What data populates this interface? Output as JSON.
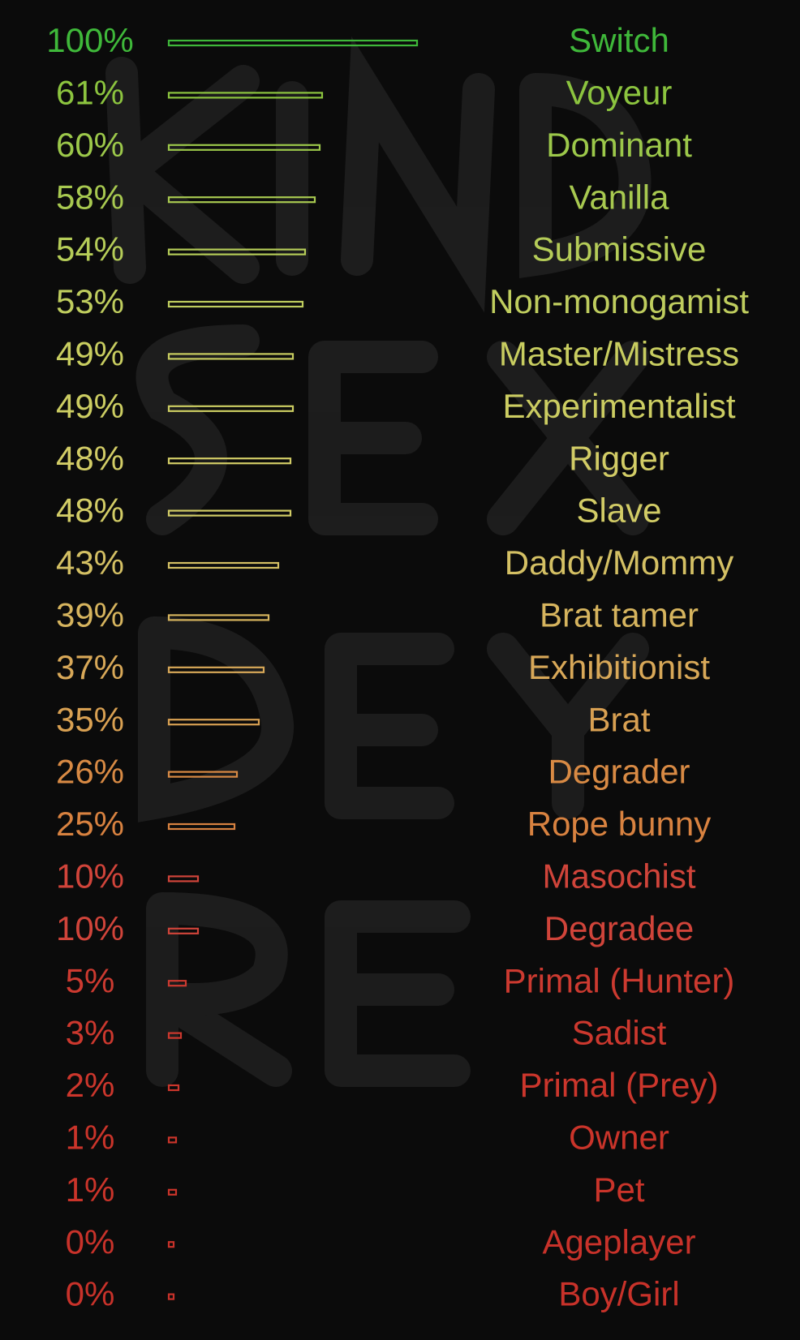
{
  "chart_data": {
    "type": "bar",
    "orientation": "horizontal",
    "categories": [
      "Switch",
      "Voyeur",
      "Dominant",
      "Vanilla",
      "Submissive",
      "Non-monogamist",
      "Master/Mistress",
      "Experimentalist",
      "Rigger",
      "Slave",
      "Daddy/Mommy",
      "Brat tamer",
      "Exhibitionist",
      "Brat",
      "Degrader",
      "Rope bunny",
      "Masochist",
      "Degradee",
      "Primal (Hunter)",
      "Sadist",
      "Primal (Prey)",
      "Owner",
      "Pet",
      "Ageplayer",
      "Boy/Girl"
    ],
    "values": [
      100,
      61,
      60,
      58,
      54,
      53,
      49,
      49,
      48,
      48,
      43,
      39,
      37,
      35,
      26,
      25,
      10,
      10,
      5,
      3,
      2,
      1,
      1,
      0,
      0
    ],
    "value_labels": [
      "100%",
      "61%",
      "60%",
      "58%",
      "54%",
      "53%",
      "49%",
      "49%",
      "48%",
      "48%",
      "43%",
      "39%",
      "37%",
      "35%",
      "26%",
      "25%",
      "10%",
      "10%",
      "5%",
      "3%",
      "2%",
      "1%",
      "1%",
      "0%",
      "0%"
    ],
    "colors": [
      "#3fb83a",
      "#8cc43f",
      "#9cc84a",
      "#a8c950",
      "#b5cc58",
      "#bfcd5e",
      "#c8cd60",
      "#cccd62",
      "#d2cc66",
      "#d2cc66",
      "#d4c064",
      "#d6b45e",
      "#d8a858",
      "#d8a052",
      "#d88a44",
      "#d88240",
      "#d0443a",
      "#d0443a",
      "#cc3a30",
      "#cc382e",
      "#cc362c",
      "#ca342a",
      "#ca342a",
      "#c8322a",
      "#c8322a"
    ]
  }
}
